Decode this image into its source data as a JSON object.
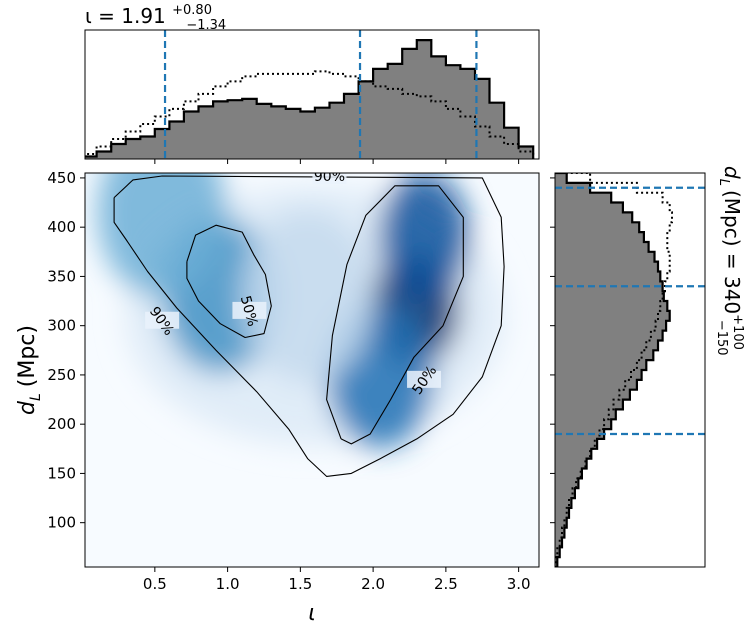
{
  "chart_data": [
    {
      "type": "histogram",
      "panel": "top-marginal",
      "title": "ι = 1.91",
      "title_sup": "+0.80",
      "title_sub": "−1.34",
      "xlim": [
        0.02,
        3.14
      ],
      "step": {
        "color": "#808080",
        "edgecolor": "#000000",
        "bins": [
          [
            0.05,
            0.02
          ],
          [
            0.15,
            0.06
          ],
          [
            0.25,
            0.12
          ],
          [
            0.35,
            0.16
          ],
          [
            0.45,
            0.18
          ],
          [
            0.55,
            0.24
          ],
          [
            0.65,
            0.3
          ],
          [
            0.75,
            0.38
          ],
          [
            0.85,
            0.42
          ],
          [
            0.95,
            0.46
          ],
          [
            1.05,
            0.47
          ],
          [
            1.15,
            0.48
          ],
          [
            1.25,
            0.44
          ],
          [
            1.35,
            0.42
          ],
          [
            1.45,
            0.4
          ],
          [
            1.55,
            0.38
          ],
          [
            1.65,
            0.41
          ],
          [
            1.75,
            0.45
          ],
          [
            1.85,
            0.52
          ],
          [
            1.95,
            0.62
          ],
          [
            2.05,
            0.72
          ],
          [
            2.15,
            0.76
          ],
          [
            2.25,
            0.88
          ],
          [
            2.35,
            0.95
          ],
          [
            2.45,
            0.82
          ],
          [
            2.55,
            0.75
          ],
          [
            2.65,
            0.72
          ],
          [
            2.75,
            0.64
          ],
          [
            2.85,
            0.45
          ],
          [
            2.95,
            0.25
          ],
          [
            3.05,
            0.1
          ]
        ]
      },
      "dotted": {
        "color": "#000000",
        "bins": [
          [
            0.05,
            0.04
          ],
          [
            0.15,
            0.1
          ],
          [
            0.25,
            0.16
          ],
          [
            0.35,
            0.22
          ],
          [
            0.45,
            0.28
          ],
          [
            0.55,
            0.34
          ],
          [
            0.65,
            0.4
          ],
          [
            0.75,
            0.46
          ],
          [
            0.85,
            0.52
          ],
          [
            0.95,
            0.58
          ],
          [
            1.05,
            0.62
          ],
          [
            1.15,
            0.66
          ],
          [
            1.25,
            0.68
          ],
          [
            1.35,
            0.68
          ],
          [
            1.45,
            0.68
          ],
          [
            1.55,
            0.68
          ],
          [
            1.65,
            0.7
          ],
          [
            1.75,
            0.68
          ],
          [
            1.85,
            0.66
          ],
          [
            1.95,
            0.62
          ],
          [
            2.05,
            0.58
          ],
          [
            2.15,
            0.56
          ],
          [
            2.25,
            0.52
          ],
          [
            2.35,
            0.5
          ],
          [
            2.45,
            0.46
          ],
          [
            2.55,
            0.4
          ],
          [
            2.65,
            0.34
          ],
          [
            2.75,
            0.26
          ],
          [
            2.85,
            0.18
          ],
          [
            2.95,
            0.12
          ],
          [
            3.05,
            0.06
          ]
        ]
      },
      "quantile_lines": [
        0.57,
        1.91,
        2.71
      ],
      "quantile_color": "#1f77b4"
    },
    {
      "type": "heatmap",
      "panel": "main-density",
      "xlabel": "ι",
      "ylabel": "d",
      "ylabel_sub": "L",
      "ylabel_unit": "(Mpc)",
      "xlim": [
        0.02,
        3.14
      ],
      "ylim": [
        55,
        455
      ],
      "xticks": [
        "0.5",
        "1.0",
        "1.5",
        "2.0",
        "2.5",
        "3.0"
      ],
      "xtick_values": [
        0.5,
        1.0,
        1.5,
        2.0,
        2.5,
        3.0
      ],
      "yticks": [
        "100",
        "150",
        "200",
        "250",
        "300",
        "350",
        "400",
        "450"
      ],
      "ytick_values": [
        100,
        150,
        200,
        250,
        300,
        350,
        400,
        450
      ],
      "colormap": "Blues",
      "density_peaks": [
        {
          "x": 2.28,
          "y": 315,
          "weight": 1.0
        },
        {
          "x": 2.35,
          "y": 390,
          "weight": 0.75
        },
        {
          "x": 2.05,
          "y": 250,
          "weight": 0.55
        },
        {
          "x": 0.95,
          "y": 330,
          "weight": 0.45
        },
        {
          "x": 0.55,
          "y": 415,
          "weight": 0.25
        },
        {
          "x": 1.55,
          "y": 330,
          "weight": 0.2
        }
      ],
      "contours": [
        {
          "label": "50%",
          "label_pos": [
            [
              1.15,
              315
            ],
            [
              2.35,
              245
            ]
          ],
          "paths": [
            [
              [
                0.72,
                365
              ],
              [
                0.78,
                392
              ],
              [
                0.92,
                402
              ],
              [
                1.1,
                395
              ],
              [
                1.18,
                372
              ],
              [
                1.26,
                352
              ],
              [
                1.3,
                320
              ],
              [
                1.25,
                292
              ],
              [
                1.12,
                288
              ],
              [
                0.95,
                302
              ],
              [
                0.8,
                325
              ],
              [
                0.72,
                348
              ],
              [
                0.72,
                365
              ]
            ],
            [
              [
                1.78,
                185
              ],
              [
                1.68,
                225
              ],
              [
                1.72,
                290
              ],
              [
                1.82,
                362
              ],
              [
                1.95,
                412
              ],
              [
                2.15,
                442
              ],
              [
                2.45,
                442
              ],
              [
                2.62,
                410
              ],
              [
                2.62,
                350
              ],
              [
                2.48,
                300
              ],
              [
                2.28,
                268
              ],
              [
                2.12,
                225
              ],
              [
                1.98,
                190
              ],
              [
                1.85,
                180
              ],
              [
                1.78,
                185
              ]
            ]
          ]
        },
        {
          "label": "90%",
          "label_pos": [
            [
              0.55,
              305
            ],
            [
              1.7,
              452
            ]
          ],
          "path": [
            [
              0.22,
              430
            ],
            [
              0.22,
              405
            ],
            [
              0.3,
              388
            ],
            [
              0.45,
              355
            ],
            [
              0.65,
              318
            ],
            [
              0.92,
              275
            ],
            [
              1.2,
              233
            ],
            [
              1.42,
              195
            ],
            [
              1.55,
              165
            ],
            [
              1.68,
              147
            ],
            [
              1.85,
              150
            ],
            [
              2.05,
              165
            ],
            [
              2.3,
              185
            ],
            [
              2.55,
              210
            ],
            [
              2.75,
              248
            ],
            [
              2.88,
              300
            ],
            [
              2.9,
              360
            ],
            [
              2.88,
              410
            ],
            [
              2.75,
              450
            ],
            [
              0.55,
              452
            ],
            [
              0.35,
              448
            ],
            [
              0.22,
              430
            ]
          ]
        }
      ]
    },
    {
      "type": "histogram",
      "panel": "right-marginal",
      "orientation": "horizontal",
      "title": "d",
      "title_sub_letter": "L",
      "title_mid": "(Mpc) = 340",
      "title_sup": "+100",
      "title_sub": "−150",
      "ylim": [
        55,
        455
      ],
      "step": {
        "color": "#808080",
        "edgecolor": "#000000",
        "bins": [
          [
            60,
            0.02
          ],
          [
            70,
            0.04
          ],
          [
            80,
            0.06
          ],
          [
            90,
            0.08
          ],
          [
            100,
            0.1
          ],
          [
            110,
            0.12
          ],
          [
            120,
            0.14
          ],
          [
            130,
            0.17
          ],
          [
            140,
            0.2
          ],
          [
            150,
            0.23
          ],
          [
            160,
            0.27
          ],
          [
            170,
            0.31
          ],
          [
            180,
            0.36
          ],
          [
            190,
            0.42
          ],
          [
            200,
            0.48
          ],
          [
            210,
            0.52
          ],
          [
            220,
            0.58
          ],
          [
            230,
            0.64
          ],
          [
            240,
            0.7
          ],
          [
            250,
            0.74
          ],
          [
            260,
            0.78
          ],
          [
            270,
            0.84
          ],
          [
            280,
            0.88
          ],
          [
            290,
            0.92
          ],
          [
            300,
            0.95
          ],
          [
            310,
            0.98
          ],
          [
            320,
            0.96
          ],
          [
            330,
            0.93
          ],
          [
            340,
            0.92
          ],
          [
            350,
            0.9
          ],
          [
            360,
            0.88
          ],
          [
            370,
            0.85
          ],
          [
            380,
            0.8
          ],
          [
            390,
            0.76
          ],
          [
            400,
            0.72
          ],
          [
            410,
            0.66
          ],
          [
            420,
            0.58
          ],
          [
            430,
            0.48
          ],
          [
            440,
            0.3
          ],
          [
            450,
            0.1
          ]
        ]
      },
      "dotted": {
        "color": "#000000",
        "bins": [
          [
            60,
            0.01
          ],
          [
            70,
            0.02
          ],
          [
            80,
            0.04
          ],
          [
            90,
            0.06
          ],
          [
            100,
            0.08
          ],
          [
            110,
            0.1
          ],
          [
            120,
            0.12
          ],
          [
            130,
            0.15
          ],
          [
            140,
            0.18
          ],
          [
            150,
            0.22
          ],
          [
            160,
            0.26
          ],
          [
            170,
            0.3
          ],
          [
            180,
            0.34
          ],
          [
            190,
            0.38
          ],
          [
            200,
            0.42
          ],
          [
            210,
            0.46
          ],
          [
            220,
            0.5
          ],
          [
            230,
            0.55
          ],
          [
            240,
            0.6
          ],
          [
            250,
            0.65
          ],
          [
            260,
            0.7
          ],
          [
            270,
            0.74
          ],
          [
            280,
            0.78
          ],
          [
            290,
            0.82
          ],
          [
            300,
            0.86
          ],
          [
            310,
            0.88
          ],
          [
            320,
            0.9
          ],
          [
            330,
            0.92
          ],
          [
            340,
            0.94
          ],
          [
            350,
            0.96
          ],
          [
            360,
            0.98
          ],
          [
            370,
            0.98
          ],
          [
            380,
            0.96
          ],
          [
            390,
            0.96
          ],
          [
            400,
            0.98
          ],
          [
            410,
            1.0
          ],
          [
            420,
            0.98
          ],
          [
            430,
            0.92
          ],
          [
            440,
            0.7
          ],
          [
            450,
            0.3
          ]
        ]
      },
      "quantile_lines": [
        190,
        340,
        440
      ],
      "quantile_color": "#1f77b4"
    }
  ]
}
